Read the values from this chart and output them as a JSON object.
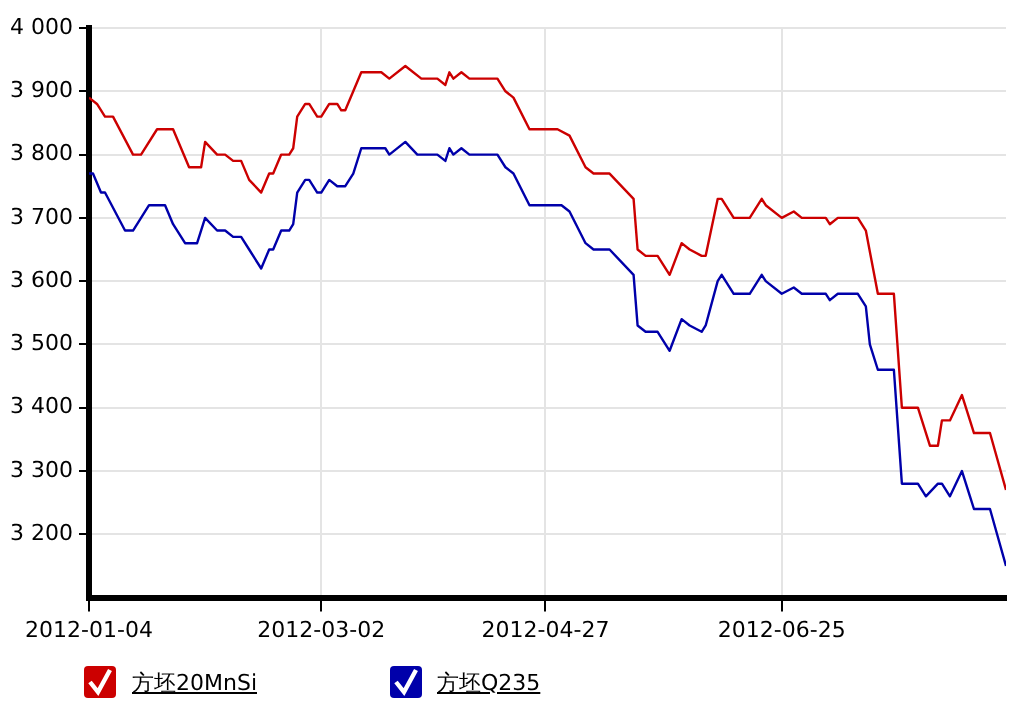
{
  "chart_data": {
    "type": "line",
    "legend": "bottom",
    "grid": true,
    "marker": "none",
    "line_style": "solid",
    "xlim": [
      "2012-01-04",
      "2012-08-20"
    ],
    "xticks": [
      "2012-01-04",
      "2012-03-02",
      "2012-04-27",
      "2012-06-25"
    ],
    "ylim": [
      3100,
      4000
    ],
    "yticks": [
      {
        "value": 3200,
        "label": "3 200"
      },
      {
        "value": 3300,
        "label": "3 300"
      },
      {
        "value": 3400,
        "label": "3 400"
      },
      {
        "value": 3500,
        "label": "3 500"
      },
      {
        "value": 3600,
        "label": "3 600"
      },
      {
        "value": 3700,
        "label": "3 700"
      },
      {
        "value": 3800,
        "label": "3 800"
      },
      {
        "value": 3900,
        "label": "3 900"
      },
      {
        "value": 4000,
        "label": "4 000"
      }
    ],
    "series": [
      {
        "name": "方坯20MnSi",
        "color": "#cc0000",
        "x": [
          "2012-01-04",
          "2012-01-06",
          "2012-01-08",
          "2012-01-10",
          "2012-01-15",
          "2012-01-17",
          "2012-01-21",
          "2012-01-25",
          "2012-01-27",
          "2012-01-29",
          "2012-02-01",
          "2012-02-02",
          "2012-02-05",
          "2012-02-07",
          "2012-02-09",
          "2012-02-11",
          "2012-02-13",
          "2012-02-16",
          "2012-02-18",
          "2012-02-19",
          "2012-02-21",
          "2012-02-23",
          "2012-02-24",
          "2012-02-25",
          "2012-02-27",
          "2012-02-28",
          "2012-03-01",
          "2012-03-02",
          "2012-03-04",
          "2012-03-06",
          "2012-03-07",
          "2012-03-08",
          "2012-03-10",
          "2012-03-12",
          "2012-03-17",
          "2012-03-19",
          "2012-03-23",
          "2012-03-27",
          "2012-03-31",
          "2012-04-02",
          "2012-04-03",
          "2012-04-04",
          "2012-04-06",
          "2012-04-08",
          "2012-04-15",
          "2012-04-17",
          "2012-04-19",
          "2012-04-23",
          "2012-04-30",
          "2012-05-03",
          "2012-05-07",
          "2012-05-09",
          "2012-05-13",
          "2012-05-19",
          "2012-05-20",
          "2012-05-22",
          "2012-05-25",
          "2012-05-28",
          "2012-05-31",
          "2012-06-02",
          "2012-06-05",
          "2012-06-06",
          "2012-06-09",
          "2012-06-10",
          "2012-06-13",
          "2012-06-17",
          "2012-06-20",
          "2012-06-21",
          "2012-06-25",
          "2012-06-28",
          "2012-06-30",
          "2012-07-06",
          "2012-07-07",
          "2012-07-09",
          "2012-07-14",
          "2012-07-16",
          "2012-07-19",
          "2012-07-23",
          "2012-07-25",
          "2012-07-29",
          "2012-08-01",
          "2012-08-03",
          "2012-08-04",
          "2012-08-06",
          "2012-08-09",
          "2012-08-11",
          "2012-08-12",
          "2012-08-16",
          "2012-08-20"
        ],
        "values": [
          3890,
          3880,
          3860,
          3860,
          3800,
          3800,
          3840,
          3840,
          3810,
          3780,
          3780,
          3820,
          3800,
          3800,
          3790,
          3790,
          3760,
          3740,
          3770,
          3770,
          3800,
          3800,
          3810,
          3860,
          3880,
          3880,
          3860,
          3860,
          3880,
          3880,
          3870,
          3870,
          3900,
          3930,
          3930,
          3920,
          3940,
          3920,
          3920,
          3910,
          3930,
          3920,
          3930,
          3920,
          3920,
          3900,
          3890,
          3840,
          3840,
          3830,
          3780,
          3770,
          3770,
          3730,
          3650,
          3640,
          3640,
          3610,
          3660,
          3650,
          3640,
          3640,
          3730,
          3730,
          3700,
          3700,
          3730,
          3720,
          3700,
          3710,
          3700,
          3700,
          3690,
          3700,
          3700,
          3680,
          3580,
          3580,
          3400,
          3400,
          3340,
          3340,
          3380,
          3380,
          3420,
          3380,
          3360,
          3360,
          3270
        ]
      },
      {
        "name": "方坯Q235",
        "color": "#0000aa",
        "x": [
          "2012-01-04",
          "2012-01-05",
          "2012-01-07",
          "2012-01-08",
          "2012-01-13",
          "2012-01-15",
          "2012-01-19",
          "2012-01-23",
          "2012-01-25",
          "2012-01-28",
          "2012-01-31",
          "2012-02-02",
          "2012-02-05",
          "2012-02-07",
          "2012-02-09",
          "2012-02-11",
          "2012-02-13",
          "2012-02-16",
          "2012-02-18",
          "2012-02-19",
          "2012-02-21",
          "2012-02-23",
          "2012-02-24",
          "2012-02-25",
          "2012-02-27",
          "2012-02-28",
          "2012-03-01",
          "2012-03-02",
          "2012-03-04",
          "2012-03-06",
          "2012-03-08",
          "2012-03-10",
          "2012-03-12",
          "2012-03-18",
          "2012-03-19",
          "2012-03-23",
          "2012-03-26",
          "2012-03-31",
          "2012-04-02",
          "2012-04-03",
          "2012-04-04",
          "2012-04-06",
          "2012-04-08",
          "2012-04-15",
          "2012-04-17",
          "2012-04-19",
          "2012-04-23",
          "2012-05-01",
          "2012-05-03",
          "2012-05-07",
          "2012-05-09",
          "2012-05-13",
          "2012-05-19",
          "2012-05-20",
          "2012-05-22",
          "2012-05-25",
          "2012-05-28",
          "2012-05-31",
          "2012-06-02",
          "2012-06-05",
          "2012-06-06",
          "2012-06-09",
          "2012-06-10",
          "2012-06-13",
          "2012-06-17",
          "2012-06-20",
          "2012-06-21",
          "2012-06-25",
          "2012-06-28",
          "2012-06-30",
          "2012-07-06",
          "2012-07-07",
          "2012-07-09",
          "2012-07-14",
          "2012-07-16",
          "2012-07-17",
          "2012-07-19",
          "2012-07-23",
          "2012-07-25",
          "2012-07-29",
          "2012-07-31",
          "2012-08-03",
          "2012-08-04",
          "2012-08-06",
          "2012-08-09",
          "2012-08-11",
          "2012-08-12",
          "2012-08-16",
          "2012-08-20"
        ],
        "values": [
          3770,
          3770,
          3740,
          3740,
          3680,
          3680,
          3720,
          3720,
          3690,
          3660,
          3660,
          3700,
          3680,
          3680,
          3670,
          3670,
          3650,
          3620,
          3650,
          3650,
          3680,
          3680,
          3690,
          3740,
          3760,
          3760,
          3740,
          3740,
          3760,
          3750,
          3750,
          3770,
          3810,
          3810,
          3800,
          3820,
          3800,
          3800,
          3790,
          3810,
          3800,
          3810,
          3800,
          3800,
          3780,
          3770,
          3720,
          3720,
          3710,
          3660,
          3650,
          3650,
          3610,
          3530,
          3520,
          3520,
          3490,
          3540,
          3530,
          3520,
          3530,
          3600,
          3610,
          3580,
          3580,
          3610,
          3600,
          3580,
          3590,
          3580,
          3580,
          3570,
          3580,
          3580,
          3560,
          3500,
          3460,
          3460,
          3280,
          3280,
          3260,
          3280,
          3280,
          3260,
          3300,
          3260,
          3240,
          3240,
          3150
        ]
      }
    ]
  }
}
